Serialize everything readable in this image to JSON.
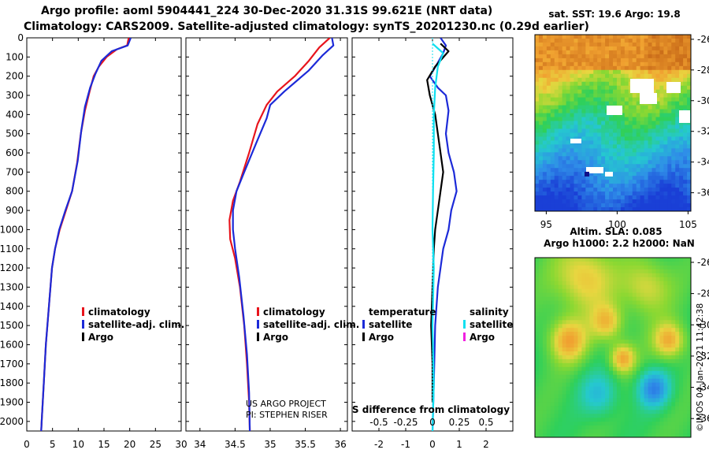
{
  "title_line1": "Argo profile: aoml 5904441_224 30-Dec-2020 31.31S 99.621E (NRT data)",
  "title_line2": "Climatology: CARS2009. Satellite-adjusted climatology: synTS_20201230.nc (0.29d earlier)",
  "colors": {
    "climatology": "#e8141c",
    "satellite": "#1c2ad8",
    "argo": "#000000",
    "sat_salinity": "#10e0f0",
    "argo_salinity": "#f020e0"
  },
  "chart_data": [
    {
      "type": "line",
      "name": "temperature-profile",
      "xlabel": "",
      "ylabel": "",
      "xlim": [
        0,
        30
      ],
      "ylim": [
        2050,
        0
      ],
      "xticks": [
        "0",
        "5",
        "10",
        "15",
        "20",
        "25",
        "30"
      ],
      "xtick_values": [
        0,
        5,
        10,
        15,
        20,
        25,
        30
      ],
      "yticks": [
        "0",
        "100",
        "200",
        "300",
        "400",
        "500",
        "600",
        "700",
        "800",
        "900",
        "1000",
        "1100",
        "1200",
        "1300",
        "1400",
        "1500",
        "1600",
        "1700",
        "1800",
        "1900",
        "2000"
      ],
      "ytick_values": [
        0,
        100,
        200,
        300,
        400,
        500,
        600,
        700,
        800,
        900,
        1000,
        1100,
        1200,
        1300,
        1400,
        1500,
        1600,
        1700,
        1800,
        1900,
        2000
      ],
      "legend": [
        "climatology",
        "satellite-adj. clim.",
        "Argo"
      ],
      "series": [
        {
          "name": "climatology",
          "color": "climatology",
          "points": [
            [
              19.8,
              0
            ],
            [
              19.5,
              40
            ],
            [
              17.5,
              60
            ],
            [
              15.5,
              100
            ],
            [
              14,
              150
            ],
            [
              13,
              200
            ],
            [
              12.2,
              280
            ],
            [
              11.3,
              380
            ],
            [
              10.5,
              500
            ],
            [
              9.8,
              650
            ],
            [
              8.8,
              800
            ],
            [
              7.6,
              900
            ],
            [
              6.4,
              1000
            ],
            [
              5.5,
              1100
            ],
            [
              4.9,
              1200
            ],
            [
              4.3,
              1400
            ],
            [
              3.7,
              1600
            ],
            [
              3.3,
              1800
            ],
            [
              2.9,
              2000
            ],
            [
              2.8,
              2050
            ]
          ]
        },
        {
          "name": "satellite-adj. clim.",
          "color": "satellite",
          "points": [
            [
              20.2,
              0
            ],
            [
              19.6,
              40
            ],
            [
              16.5,
              70
            ],
            [
              14.5,
              120
            ],
            [
              13.3,
              190
            ],
            [
              12.3,
              260
            ],
            [
              11.3,
              360
            ],
            [
              10.6,
              480
            ],
            [
              9.9,
              640
            ],
            [
              8.8,
              800
            ],
            [
              7.5,
              900
            ],
            [
              6.3,
              1000
            ],
            [
              5.5,
              1100
            ],
            [
              4.9,
              1200
            ],
            [
              4.3,
              1400
            ],
            [
              3.7,
              1600
            ],
            [
              3.3,
              1800
            ],
            [
              2.9,
              2000
            ],
            [
              2.8,
              2050
            ]
          ]
        }
      ]
    },
    {
      "type": "line",
      "name": "salinity-profile",
      "xlim": [
        33.8,
        36.1
      ],
      "ylim": [
        2050,
        0
      ],
      "xticks": [
        "34",
        "34.5",
        "35",
        "35.5",
        "36"
      ],
      "xtick_values": [
        34,
        34.5,
        35,
        35.5,
        36
      ],
      "legend": [
        "climatology",
        "satellite-adj. clim.",
        "Argo"
      ],
      "annotation": [
        "US ARGO PROJECT",
        "PI: STEPHEN RISER"
      ],
      "series": [
        {
          "name": "climatology",
          "color": "climatology",
          "points": [
            [
              35.85,
              0
            ],
            [
              35.7,
              50
            ],
            [
              35.55,
              120
            ],
            [
              35.35,
              200
            ],
            [
              35.1,
              280
            ],
            [
              34.95,
              350
            ],
            [
              34.82,
              450
            ],
            [
              34.7,
              600
            ],
            [
              34.57,
              750
            ],
            [
              34.47,
              850
            ],
            [
              34.42,
              950
            ],
            [
              34.43,
              1050
            ],
            [
              34.5,
              1150
            ],
            [
              34.57,
              1300
            ],
            [
              34.63,
              1500
            ],
            [
              34.67,
              1700
            ],
            [
              34.7,
              1900
            ],
            [
              34.71,
              2050
            ]
          ]
        },
        {
          "name": "satellite-adj. clim.",
          "color": "satellite",
          "points": [
            [
              35.88,
              0
            ],
            [
              35.9,
              40
            ],
            [
              35.75,
              90
            ],
            [
              35.55,
              170
            ],
            [
              35.2,
              280
            ],
            [
              35.0,
              350
            ],
            [
              34.95,
              420
            ],
            [
              34.8,
              550
            ],
            [
              34.63,
              700
            ],
            [
              34.52,
              800
            ],
            [
              34.47,
              900
            ],
            [
              34.47,
              1000
            ],
            [
              34.5,
              1100
            ],
            [
              34.56,
              1250
            ],
            [
              34.62,
              1450
            ],
            [
              34.67,
              1650
            ],
            [
              34.7,
              1850
            ],
            [
              34.71,
              2050
            ]
          ]
        }
      ]
    },
    {
      "type": "line",
      "name": "difference-from-climatology",
      "xlim": [
        -3,
        3
      ],
      "ylim": [
        2050,
        0
      ],
      "xticks": [
        "-2",
        "-1",
        "0",
        "1",
        "2"
      ],
      "xtick_values": [
        -2,
        -1,
        0,
        1,
        2
      ],
      "xticks_secondary": [
        "-0.5",
        "-0.25",
        "0",
        "0.25",
        "0.5"
      ],
      "xticks_secondary_values": [
        -0.5,
        -0.25,
        0,
        0.25,
        0.5
      ],
      "xlabel": "S difference from climatology",
      "legend_temperature": {
        "title": "temperature",
        "items": [
          "satellite",
          "Argo"
        ]
      },
      "legend_salinity": {
        "title": "salinity",
        "items": [
          "satellite",
          "Argo"
        ]
      },
      "series": [
        {
          "name": "temperature satellite",
          "color": "satellite",
          "points": [
            [
              0.3,
              0
            ],
            [
              0.5,
              40
            ],
            [
              0.4,
              80
            ],
            [
              0.2,
              130
            ],
            [
              -0.1,
              200
            ],
            [
              0.2,
              260
            ],
            [
              0.5,
              300
            ],
            [
              0.6,
              380
            ],
            [
              0.5,
              500
            ],
            [
              0.6,
              600
            ],
            [
              0.8,
              700
            ],
            [
              0.9,
              800
            ],
            [
              0.7,
              900
            ],
            [
              0.6,
              1000
            ],
            [
              0.4,
              1100
            ],
            [
              0.2,
              1300
            ],
            [
              0.1,
              1500
            ],
            [
              0.05,
              1800
            ],
            [
              0.0,
              2050
            ]
          ]
        },
        {
          "name": "temperature Argo",
          "color": "argo",
          "points": [
            [
              0.3,
              30
            ],
            [
              0.6,
              70
            ],
            [
              0.1,
              150
            ],
            [
              -0.2,
              220
            ],
            [
              -0.1,
              300
            ],
            [
              0.1,
              400
            ],
            [
              0.2,
              500
            ],
            [
              0.3,
              600
            ],
            [
              0.4,
              700
            ],
            [
              0.3,
              800
            ],
            [
              0.2,
              900
            ],
            [
              0.1,
              1000
            ],
            [
              0.05,
              1100
            ],
            [
              0.0,
              1300
            ],
            [
              -0.05,
              1500
            ],
            [
              0.0,
              1700
            ],
            [
              0.0,
              1900
            ]
          ]
        },
        {
          "name": "salinity satellite",
          "color": "sat_salinity",
          "points": [
            [
              0.0,
              30
            ],
            [
              0.4,
              80
            ],
            [
              0.2,
              150
            ],
            [
              0.1,
              260
            ],
            [
              0.05,
              400
            ],
            [
              0.05,
              600
            ],
            [
              0.02,
              800
            ],
            [
              0.0,
              1000
            ],
            [
              0.05,
              1200
            ],
            [
              0.0,
              1500
            ],
            [
              0.05,
              1800
            ],
            [
              0.0,
              2050
            ]
          ]
        }
      ]
    }
  ],
  "maps": {
    "sst": {
      "label": "sat. SST: 19.6 Argo: 19.8",
      "xticks": [
        "95",
        "100",
        "105"
      ],
      "xtick_values": [
        95,
        100,
        105
      ],
      "yticks": [
        "-26",
        "-28",
        "-30",
        "-32",
        "-34",
        "-36"
      ],
      "ytick_values": [
        -26,
        -28,
        -30,
        -32,
        -34,
        -36
      ],
      "xlim": [
        94.2,
        105.2
      ],
      "ylim": [
        -25.7,
        -37.2
      ]
    },
    "sla": {
      "label_line1": "Altim. SLA: 0.085",
      "label_line2": "Argo h1000: 2.2 h2000: NaN",
      "yticks": [
        "-26",
        "-28",
        "-30",
        "-32",
        "-34",
        "-36"
      ],
      "ytick_values": [
        -26,
        -28,
        -30,
        -32,
        -34,
        -36
      ],
      "ylim": [
        -25.7,
        -37.2
      ]
    }
  },
  "credit": "©IMOS 04-Jan-2021 11:42:38"
}
